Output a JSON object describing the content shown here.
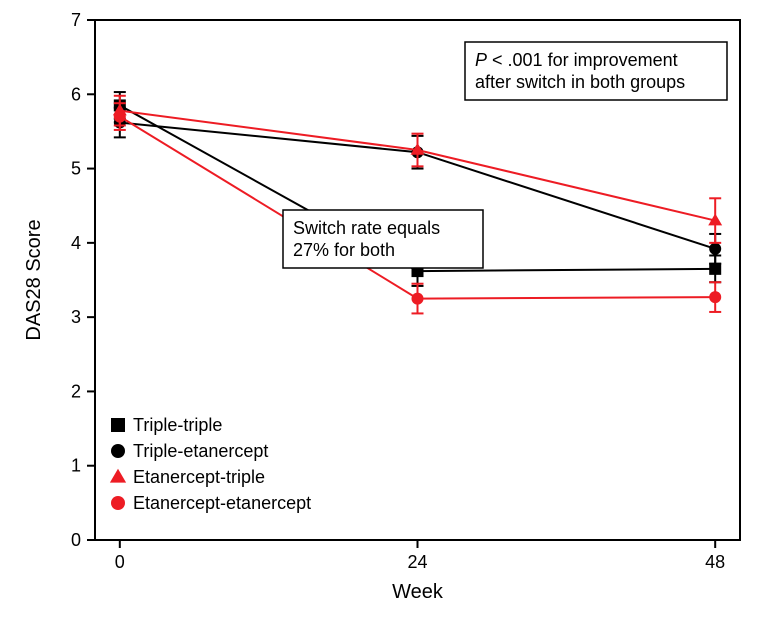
{
  "chart": {
    "type": "line",
    "background_color": "#ffffff",
    "plot_border_color": "#000000",
    "plot_border_width": 2,
    "x_axis": {
      "label": "Week",
      "label_fontsize": 20,
      "tick_fontsize": 18,
      "ticks": [
        0,
        24,
        48
      ],
      "lim": [
        -2,
        50
      ]
    },
    "y_axis": {
      "label": "DAS28 Score",
      "label_fontsize": 20,
      "tick_fontsize": 18,
      "ticks": [
        0,
        1,
        2,
        3,
        4,
        5,
        6,
        7
      ],
      "lim": [
        0,
        7
      ]
    },
    "line_width": 2.0,
    "errorbar_width": 2.0,
    "errorbar_cap": 6,
    "marker_size": 10,
    "colors": {
      "black": "#000000",
      "red": "#ed1c24"
    },
    "series": [
      {
        "id": "triple-triple",
        "label": "Triple-triple",
        "color": "#000000",
        "marker": "square",
        "x": [
          0,
          24,
          48
        ],
        "y": [
          5.85,
          3.62,
          3.65
        ],
        "err": [
          0.18,
          0.2,
          0.18
        ]
      },
      {
        "id": "triple-etanercept",
        "label": "Triple-etanercept",
        "color": "#000000",
        "marker": "circle",
        "x": [
          0,
          24,
          48
        ],
        "y": [
          5.62,
          5.22,
          3.92
        ],
        "err": [
          0.2,
          0.22,
          0.2
        ]
      },
      {
        "id": "etanercept-triple",
        "label": "Etanercept-triple",
        "color": "#ed1c24",
        "marker": "triangle",
        "x": [
          0,
          24,
          48
        ],
        "y": [
          5.78,
          5.25,
          4.3
        ],
        "err": [
          0.2,
          0.22,
          0.3
        ]
      },
      {
        "id": "etanercept-etanercept",
        "label": "Etanercept-etanercept",
        "color": "#ed1c24",
        "marker": "circle",
        "x": [
          0,
          24,
          48
        ],
        "y": [
          5.7,
          3.25,
          3.27
        ],
        "err": [
          0.18,
          0.2,
          0.2
        ]
      }
    ],
    "legend": {
      "position": "bottom-left",
      "fontsize": 18
    },
    "annotations": {
      "switch_box": {
        "line1": "Switch rate equals",
        "line2": "27% for both",
        "border_color": "#000000",
        "border_width": 1.5,
        "fontsize": 18
      },
      "pvalue_box": {
        "line1_prefix_italic": "P",
        "line1_rest": " < .001 for improvement",
        "line2": "after switch in both groups",
        "border_color": "#000000",
        "border_width": 1.5,
        "fontsize": 18
      }
    }
  }
}
